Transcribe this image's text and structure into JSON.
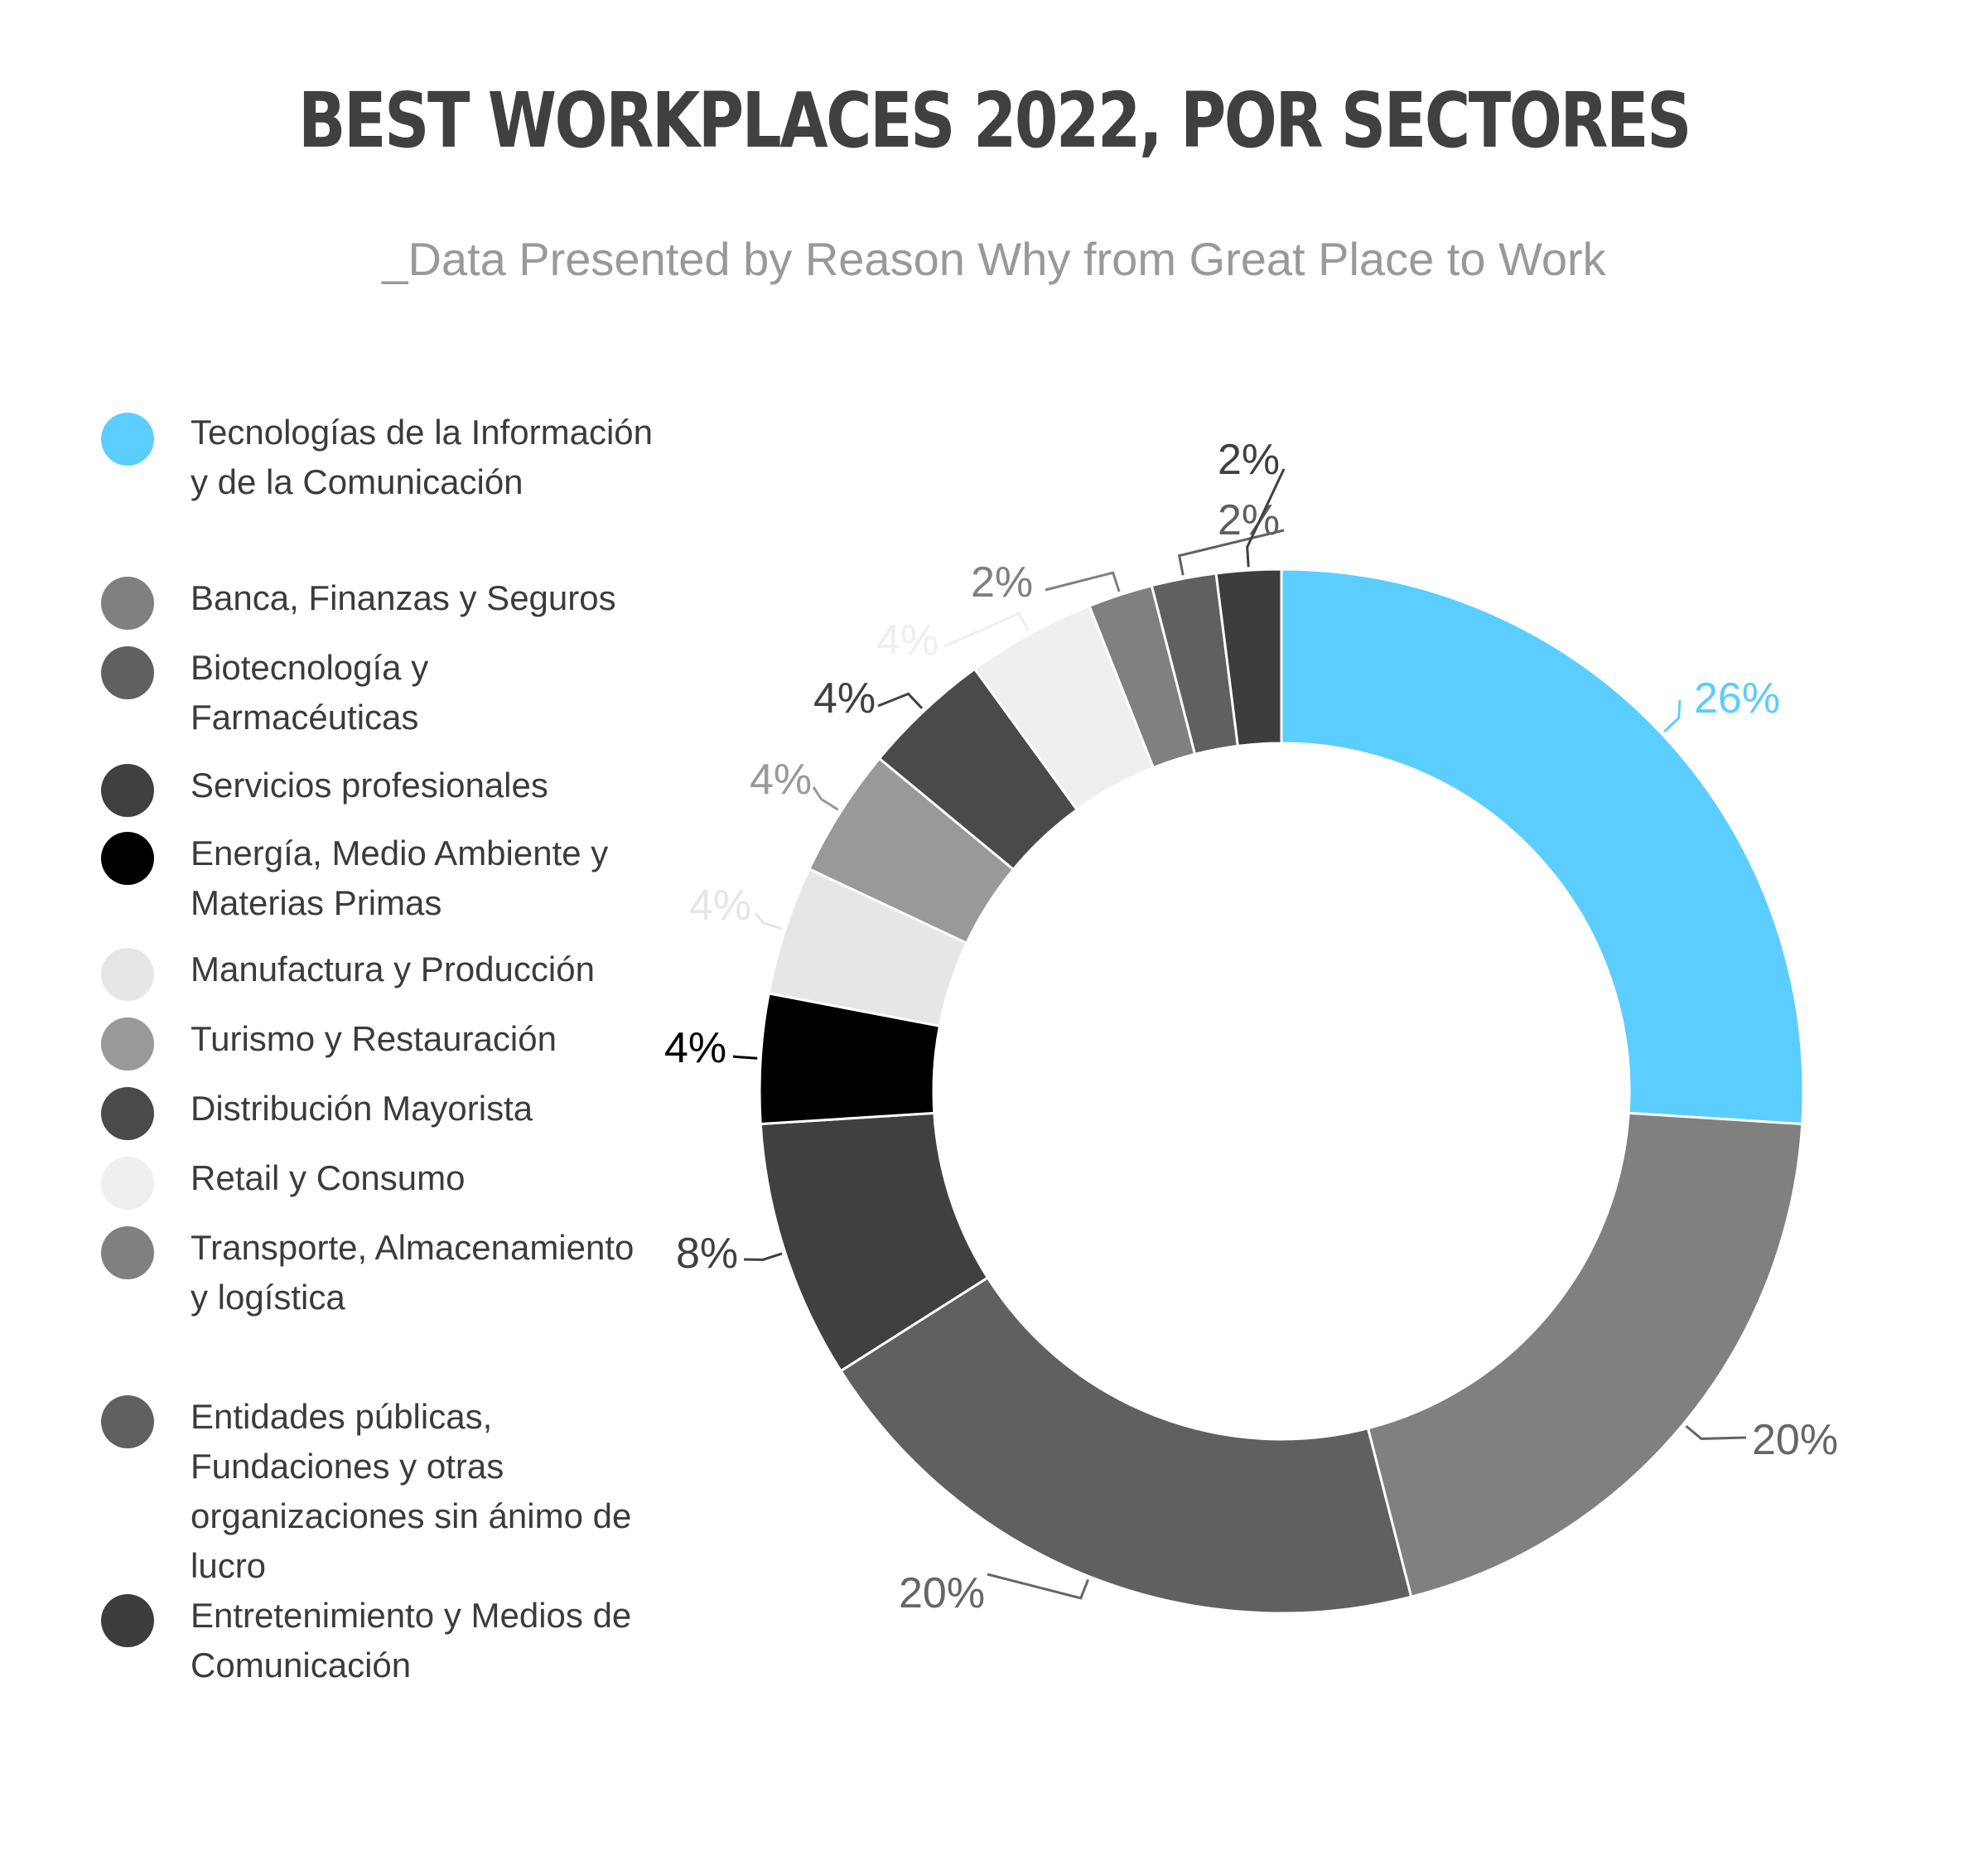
{
  "title": "BEST WORKPLACES 2022, POR SECTORES",
  "subtitle": "_Data Presented by Reason Why from Great Place to Work",
  "legend": [
    {
      "label": "Tecnologías de la Información y de la Comunicación",
      "color": "#5ccdff"
    },
    {
      "label": "Banca, Finanzas y Seguros",
      "color": "#808080"
    },
    {
      "label": "Biotecnología y Farmacéuticas",
      "color": "#606060"
    },
    {
      "label": "Servicios profesionales",
      "color": "#404040"
    },
    {
      "label": "Energía, Medio Ambiente y Materias Primas",
      "color": "#000000"
    },
    {
      "label": "Manufactura y Producción",
      "color": "#e6e6e6"
    },
    {
      "label": "Turismo y Restauración",
      "color": "#999999"
    },
    {
      "label": "Distribución Mayorista",
      "color": "#4a4a4a"
    },
    {
      "label": "Retail y Consumo",
      "color": "#efefef"
    },
    {
      "label": "Transporte, Almacenamiento y logística",
      "color": "#808080"
    },
    {
      "label": "Entidades públicas, Fundaciones y otras organizaciones sin ánimo de lucro",
      "color": "#606060"
    },
    {
      "label": "Entretenimiento y Medios de Comunicación",
      "color": "#3d3d3d"
    }
  ],
  "chart_data": {
    "type": "donut",
    "title": "BEST WORKPLACES 2022, POR SECTORES",
    "categories": [
      "Tecnologías de la Información y de la Comunicación",
      "Banca, Finanzas y Seguros",
      "Biotecnología y Farmacéuticas",
      "Servicios profesionales",
      "Energía, Medio Ambiente y Materias Primas",
      "Manufactura y Producción",
      "Turismo y Restauración",
      "Distribución Mayorista",
      "Retail y Consumo",
      "Transporte, Almacenamiento y logística",
      "Entidades públicas, Fundaciones y otras organizaciones sin ánimo de lucro",
      "Entretenimiento y Medios de Comunicación"
    ],
    "values": [
      26,
      20,
      20,
      8,
      4,
      4,
      4,
      4,
      4,
      2,
      2,
      2
    ],
    "labels": [
      "26%",
      "20%",
      "20%",
      "8%",
      "4%",
      "4%",
      "4%",
      "4%",
      "4%",
      "2%",
      "2%",
      "2%"
    ],
    "colors": [
      "#5ccdff",
      "#808080",
      "#606060",
      "#404040",
      "#000000",
      "#e6e6e6",
      "#999999",
      "#4a4a4a",
      "#efefef",
      "#808080",
      "#606060",
      "#3d3d3d"
    ],
    "label_colors": [
      "#5ccdff",
      "#666666",
      "#666666",
      "#404040",
      "#000000",
      "#e6e6e6",
      "#999999",
      "#404040",
      "#efefef",
      "#808080",
      "#606060",
      "#404040"
    ],
    "legend_position": "left"
  }
}
